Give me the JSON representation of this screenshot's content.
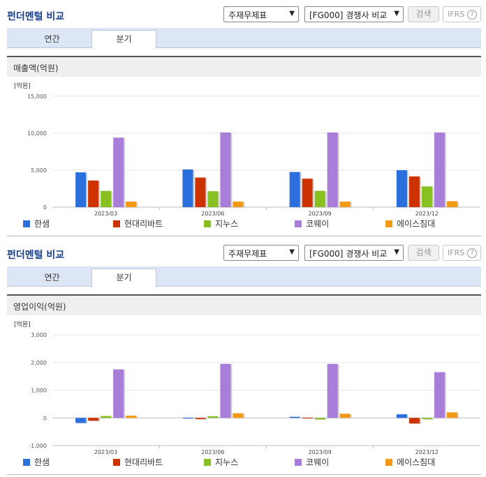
{
  "panels": [
    {
      "title": "펀더멘털 비교",
      "select1": "주재무제표",
      "select2": "[FG000] 경쟁사 비교",
      "search_label": "검색",
      "ifrs_label": "IFRS",
      "help_label": "?",
      "tabs": [
        "연간",
        "분기"
      ],
      "active_tab": "분기",
      "section_title": "매출액(억원)"
    },
    {
      "title": "펀더멘털 비교",
      "select1": "주재무제표",
      "select2": "[FG000] 경쟁사 비교",
      "search_label": "검색",
      "ifrs_label": "IFRS",
      "help_label": "?",
      "tabs": [
        "연간",
        "분기"
      ],
      "active_tab": "분기",
      "section_title": "영업이익(억원)"
    }
  ],
  "colors": {
    "한샘": "#2a6fdb",
    "현대리바트": "#cc3300",
    "지누스": "#88c022",
    "코웨이": "#a87ed8",
    "에이스침대": "#f29a15"
  },
  "chart_data": [
    {
      "type": "bar",
      "title": "매출액(억원)",
      "unit_label": "[억원]",
      "categories": [
        "2023/03",
        "2023/06",
        "2023/09",
        "2023/12"
      ],
      "ylim": [
        0,
        15000
      ],
      "yticks": [
        0,
        5000,
        10000,
        15000
      ],
      "ytick_labels": [
        "0",
        "5,000",
        "10,000",
        "15,000"
      ],
      "grid": true,
      "legend": "bottom",
      "series": [
        {
          "name": "한샘",
          "values": [
            4700,
            5100,
            4750,
            5000
          ]
        },
        {
          "name": "현대리바트",
          "values": [
            3600,
            4000,
            3850,
            4150
          ]
        },
        {
          "name": "지누스",
          "values": [
            2200,
            2150,
            2200,
            2800
          ]
        },
        {
          "name": "코웨이",
          "values": [
            9400,
            10100,
            10100,
            10100
          ]
        },
        {
          "name": "에이스침대",
          "values": [
            750,
            750,
            750,
            800
          ]
        }
      ]
    },
    {
      "type": "bar",
      "title": "영업이익(억원)",
      "unit_label": "[억원]",
      "categories": [
        "2023/03",
        "2023/06",
        "2023/09",
        "2023/12"
      ],
      "ylim": [
        -1000,
        3000
      ],
      "yticks": [
        -1000,
        0,
        1000,
        2000,
        3000
      ],
      "ytick_labels": [
        "-1,000",
        "0",
        "1,000",
        "2,000",
        "3,000"
      ],
      "grid": true,
      "legend": "bottom",
      "series": [
        {
          "name": "한샘",
          "values": [
            -180,
            10,
            40,
            130
          ]
        },
        {
          "name": "현대리바트",
          "values": [
            -100,
            -40,
            10,
            -200
          ]
        },
        {
          "name": "지누스",
          "values": [
            70,
            60,
            -50,
            -40
          ]
        },
        {
          "name": "코웨이",
          "values": [
            1750,
            1950,
            1950,
            1650
          ]
        },
        {
          "name": "에이스침대",
          "values": [
            80,
            170,
            150,
            200
          ]
        }
      ]
    }
  ]
}
